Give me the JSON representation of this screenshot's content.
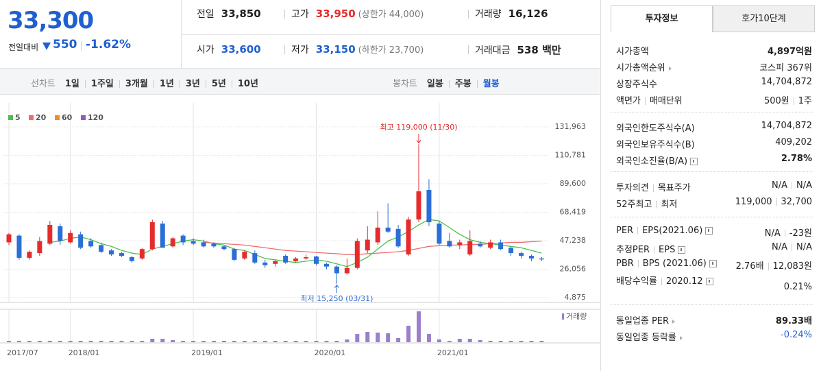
{
  "header": {
    "price": "33,300",
    "change_label": "전일대비",
    "change": "550",
    "change_rate": "-1.62%",
    "down_color": "#1f5fd1",
    "stats": [
      [
        {
          "label": "전일",
          "value": "33,850",
          "color": "#222"
        },
        {
          "label": "고가",
          "value": "33,950",
          "color": "#e52b2b",
          "note": "(상한가 44,000)"
        },
        {
          "label": "거래량",
          "value": "16,126",
          "color": "#222"
        }
      ],
      [
        {
          "label": "시가",
          "value": "33,600",
          "color": "#1f5fd1"
        },
        {
          "label": "저가",
          "value": "33,150",
          "color": "#1f5fd1",
          "note": "(하한가 23,700)"
        },
        {
          "label": "거래대금",
          "value": "538 백만",
          "color": "#222"
        }
      ]
    ]
  },
  "period_bar": {
    "line_label": "선차트",
    "line_periods": [
      "1일",
      "1주일",
      "3개월",
      "1년",
      "3년",
      "5년",
      "10년"
    ],
    "candle_label": "봉차트",
    "candle_periods": [
      "일봉",
      "주봉",
      "월봉"
    ],
    "selected": 2
  },
  "chart_data": {
    "type": "candlestick",
    "categories": [
      "2017/07",
      null,
      null,
      null,
      null,
      null,
      "2018/01",
      null,
      null,
      null,
      null,
      null,
      null,
      null,
      null,
      null,
      null,
      null,
      "2019/01",
      null,
      null,
      null,
      null,
      null,
      null,
      null,
      null,
      null,
      null,
      null,
      "2020/01",
      null,
      null,
      null,
      null,
      null,
      null,
      null,
      null,
      null,
      null,
      null,
      "2021/01",
      null,
      null,
      null,
      null,
      null,
      null,
      null,
      null,
      null,
      null
    ],
    "open": [
      46000,
      51000,
      34500,
      38000,
      45000,
      58000,
      46000,
      52000,
      47000,
      44000,
      40000,
      38000,
      35000,
      34000,
      41000,
      60000,
      43000,
      51000,
      47000,
      46000,
      45000,
      43000,
      41000,
      34000,
      38000,
      31000,
      30000,
      36000,
      32000,
      34000,
      35500,
      30000,
      28000,
      23000,
      27000,
      40000,
      46000,
      57000,
      56000,
      37000,
      63000,
      85000,
      60000,
      47000,
      44000,
      37000,
      45000,
      42000,
      46000,
      42000,
      38000,
      36000,
      34000
    ],
    "high": [
      53000,
      52000,
      40000,
      50000,
      62000,
      60000,
      55000,
      54000,
      49000,
      46000,
      41000,
      39000,
      36000,
      42000,
      63000,
      62000,
      50000,
      52000,
      49000,
      48000,
      46000,
      44000,
      42000,
      40000,
      40000,
      33000,
      33000,
      37000,
      35000,
      37000,
      36000,
      31000,
      29000,
      34000,
      49000,
      58000,
      69000,
      75000,
      59000,
      65000,
      119000,
      93000,
      62000,
      53000,
      48000,
      55000,
      47000,
      48000,
      48000,
      43000,
      39000,
      37000,
      35000
    ],
    "low": [
      44000,
      33000,
      33000,
      36000,
      44000,
      44000,
      45000,
      41000,
      42000,
      38000,
      36000,
      35000,
      31000,
      33000,
      40000,
      43000,
      42000,
      44000,
      44000,
      42000,
      42000,
      40000,
      32000,
      33000,
      30000,
      27000,
      28000,
      30000,
      31000,
      33000,
      29000,
      26000,
      15250,
      22000,
      26000,
      38000,
      44000,
      53000,
      42000,
      36000,
      61000,
      58000,
      44000,
      42000,
      41000,
      36000,
      42000,
      41000,
      40000,
      36000,
      34000,
      32000,
      32000
    ],
    "close": [
      52000,
      34500,
      39000,
      47000,
      59000,
      47000,
      53000,
      42000,
      43000,
      39000,
      37000,
      36000,
      32000,
      41000,
      61000,
      42000,
      49000,
      46000,
      45000,
      43000,
      43000,
      41000,
      33000,
      39000,
      31000,
      29000,
      32000,
      31000,
      34000,
      35000,
      30000,
      28000,
      23000,
      27000,
      47000,
      48000,
      57000,
      54000,
      43000,
      63000,
      84000,
      61000,
      45000,
      43000,
      46000,
      47000,
      43000,
      46000,
      41000,
      38000,
      36000,
      34000,
      33300
    ],
    "up_color": "#e52b2b",
    "down_color": "#2a6fd6",
    "series": [
      {
        "name": "5",
        "color": "#4cbf4c",
        "values": [
          null,
          null,
          null,
          null,
          46000,
          47000,
          49000,
          50000,
          48000,
          45000,
          43000,
          40000,
          38000,
          37000,
          41000,
          43000,
          45000,
          47000,
          48000,
          47000,
          45000,
          44000,
          41000,
          40000,
          37000,
          34000,
          33000,
          32000,
          31000,
          32000,
          33000,
          32000,
          30000,
          28000,
          31000,
          35000,
          41000,
          47000,
          50000,
          54000,
          59000,
          63000,
          62000,
          57000,
          52000,
          48000,
          46000,
          45000,
          44000,
          43000,
          42000,
          40000,
          38000
        ]
      },
      {
        "name": "20",
        "color": "#f06b6b",
        "values": [
          null,
          null,
          null,
          null,
          null,
          null,
          null,
          null,
          null,
          null,
          null,
          null,
          null,
          null,
          null,
          null,
          null,
          null,
          null,
          46000,
          45500,
          45000,
          44500,
          44000,
          43000,
          42000,
          41000,
          40000,
          39500,
          39000,
          38500,
          38000,
          37500,
          37000,
          37000,
          37500,
          38000,
          38500,
          39000,
          40000,
          41500,
          43000,
          43500,
          44000,
          44000,
          44500,
          44500,
          45000,
          45500,
          46000,
          46000,
          46500,
          47000
        ]
      },
      {
        "name": "60",
        "color": "#f08c2e",
        "values": [
          null,
          null,
          null,
          null,
          null,
          null,
          null,
          null,
          null,
          null,
          null,
          null,
          null,
          null,
          null,
          null,
          null,
          null,
          null,
          null,
          null,
          null,
          null,
          null,
          null,
          null,
          null,
          null,
          null,
          null,
          null,
          null,
          null,
          null,
          null,
          null,
          null,
          null,
          null,
          null,
          null,
          null,
          null,
          null,
          null,
          null,
          null,
          null,
          null,
          null,
          null,
          null,
          null
        ]
      },
      {
        "name": "120",
        "color": "#8e5cc4",
        "values": [
          null,
          null,
          null,
          null,
          null,
          null,
          null,
          null,
          null,
          null,
          null,
          null,
          null,
          null,
          null,
          null,
          null,
          null,
          null,
          null,
          null,
          null,
          null,
          null,
          null,
          null,
          null,
          null,
          null,
          null,
          null,
          null,
          null,
          null,
          null,
          null,
          null,
          null,
          null,
          null,
          null,
          null,
          null,
          null,
          null,
          null,
          null,
          null,
          null,
          null,
          null,
          null,
          null
        ]
      }
    ],
    "volume_name": "거래량",
    "volume_color": "#9b7fcb",
    "volume": [
      2,
      2,
      2,
      2,
      2,
      2,
      2,
      2,
      2,
      2,
      2,
      2,
      2,
      2,
      5,
      5,
      3,
      2,
      2,
      2,
      2,
      2,
      2,
      2,
      2,
      2,
      2,
      2,
      2,
      2,
      2,
      2,
      2,
      4,
      12,
      15,
      14,
      13,
      6,
      24,
      45,
      12,
      4,
      2,
      5,
      5,
      3,
      2,
      2,
      2,
      2,
      2,
      2
    ],
    "ylim": [
      4875,
      131963
    ],
    "yticks": [
      {
        "value": 4875,
        "label": "4,875"
      },
      {
        "value": 26056,
        "label": "26,056"
      },
      {
        "value": 47238,
        "label": "47,238"
      },
      {
        "value": 68419,
        "label": "68,419"
      },
      {
        "value": 89600,
        "label": "89,600"
      },
      {
        "value": 110781,
        "label": "110,781"
      },
      {
        "value": 131963,
        "label": "131,963"
      }
    ],
    "annotations": [
      "최고 119,000 (11/30)",
      "최저 15,250 (03/31)"
    ]
  },
  "investment_info": {
    "tabs": [
      "투자정보",
      "호가10단계"
    ],
    "active_tab": 0,
    "sections": [
      [
        {
          "label": [
            "시가총액"
          ],
          "value": [
            "4,897억원"
          ],
          "emph": true
        },
        {
          "label": [
            "시가총액순위"
          ],
          "arrow": true,
          "value": [
            "코스피 367위"
          ]
        },
        {
          "label": [
            "상장주식수"
          ],
          "value": [
            "14,704,872"
          ]
        },
        {
          "label": [
            "액면가",
            "매매단위"
          ],
          "value": [
            "500원",
            "1주"
          ]
        }
      ],
      [
        {
          "label": [
            "외국인한도주식수(A)"
          ],
          "value": [
            "14,704,872"
          ]
        },
        {
          "label": [
            "외국인보유주식수(B)"
          ],
          "value": [
            "409,202"
          ]
        },
        {
          "label": [
            "외국인소진율(B/A)"
          ],
          "help": true,
          "value": [
            "2.78%"
          ],
          "emph": true
        }
      ],
      [
        {
          "label": [
            "투자의견",
            "목표주가"
          ],
          "value": [
            "N/A",
            "N/A"
          ]
        },
        {
          "label": [
            "52주최고",
            "최저"
          ],
          "value": [
            "119,000",
            "32,700"
          ]
        }
      ],
      [
        {
          "label": [
            "PER",
            "EPS(2021.06)"
          ],
          "help": true,
          "value": [
            "N/A",
            "-23원"
          ]
        },
        {
          "label": [
            "추정PER",
            "EPS"
          ],
          "help": true,
          "value": [
            "N/A",
            "N/A"
          ]
        },
        {
          "label": [
            "PBR",
            "BPS (2021.06)"
          ],
          "help": true,
          "value": [
            "2.76배",
            "12,083원"
          ]
        },
        {
          "label": [
            "배당수익률",
            "2020.12"
          ],
          "help": true,
          "value": [
            "0.21%"
          ]
        }
      ],
      [
        {
          "label": [
            "동일업종 PER"
          ],
          "arrow": true,
          "value": [
            "89.33배"
          ],
          "emph": true
        },
        {
          "label": [
            "동일업종 등락률"
          ],
          "arrow": true,
          "value": [
            "-0.24%"
          ],
          "color": "#1f5fd1"
        }
      ]
    ]
  }
}
